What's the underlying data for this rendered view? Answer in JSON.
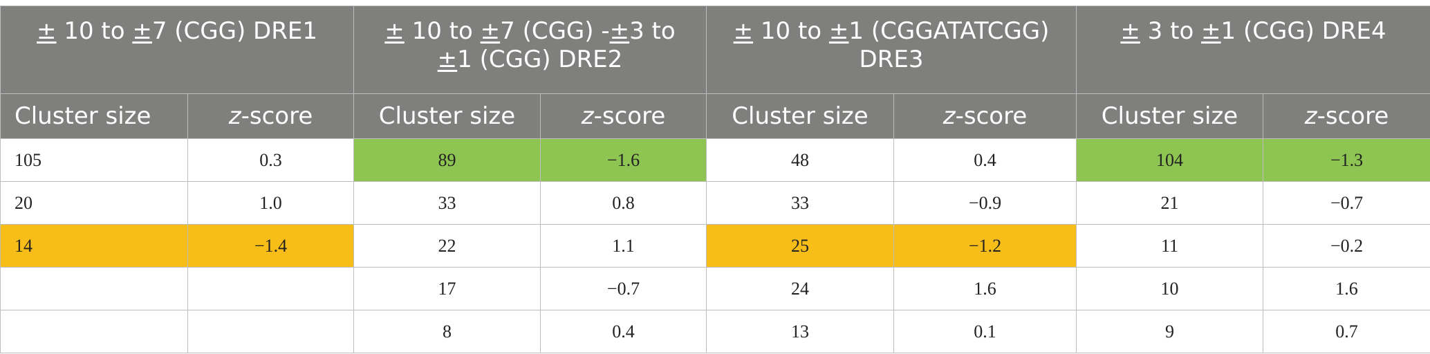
{
  "table": {
    "groups": [
      {
        "prefix_pm1": "±",
        "part1": " 10 to ",
        "prefix_pm2": "±",
        "part2": "7 (CGG) DRE1"
      },
      {
        "prefix_pm1": "±",
        "part1": " 10 to ",
        "prefix_pm2": "±",
        "part2": "7 (CGG) -",
        "prefix_pm3": "±",
        "part3": "3 to ",
        "prefix_pm4": "±",
        "part4": "1 (CGG) DRE2"
      },
      {
        "prefix_pm1": "±",
        "part1": " 10 to ",
        "prefix_pm2": "±",
        "part2": "1 (CGGATATCGG) DRE3"
      },
      {
        "prefix_pm1": "±",
        "part1": " 3 to ",
        "prefix_pm2": "±",
        "part2": "1 (CGG) DRE4"
      }
    ],
    "subheaders": {
      "cluster": "Cluster size",
      "z_letter": "z",
      "z_rest": "-score"
    },
    "rows": [
      [
        "105",
        "0.3",
        "89",
        "−1.6",
        "48",
        "0.4",
        "104",
        "−1.3"
      ],
      [
        "20",
        "1.0",
        "33",
        "0.8",
        "33",
        "−0.9",
        "21",
        "−0.7"
      ],
      [
        "14",
        "−1.4",
        "22",
        "1.1",
        "25",
        "−1.2",
        "11",
        "−0.2"
      ],
      [
        "",
        "",
        "17",
        "−0.7",
        "24",
        "1.6",
        "10",
        "1.6"
      ],
      [
        "",
        "",
        "8",
        "0.4",
        "13",
        "0.1",
        "9",
        "0.7"
      ]
    ],
    "highlights": {
      "green": "#8ec552",
      "yellow": "#f7bd18",
      "header_bg": "#7f807e"
    }
  }
}
